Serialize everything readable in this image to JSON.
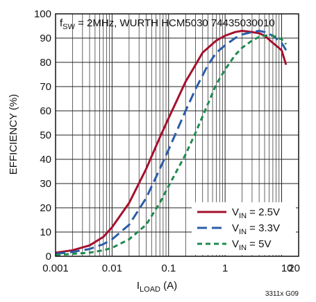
{
  "chart_data": {
    "type": "line",
    "title": "",
    "annotation": {
      "prefix": "f",
      "sub": "SW",
      "suffix": " = 2MHz, WURTH HCM5030 74435030010"
    },
    "xlabel": {
      "main": "I",
      "sub": "LOAD",
      "suffix": " (A)"
    },
    "ylabel": "EFFICIENCY (%)",
    "x_scale": "log",
    "xlim": [
      0.001,
      20
    ],
    "ylim": [
      0,
      100
    ],
    "grid": true,
    "x_ticks": [
      {
        "value": 0.001,
        "label": "0.001"
      },
      {
        "value": 0.01,
        "label": "0.01"
      },
      {
        "value": 0.1,
        "label": "0.1"
      },
      {
        "value": 1,
        "label": "1"
      },
      {
        "value": 10,
        "label": "10"
      },
      {
        "value": 20,
        "label": "20"
      }
    ],
    "y_ticks": [
      0,
      10,
      20,
      30,
      40,
      50,
      60,
      70,
      80,
      90,
      100
    ],
    "legend_position": "bottom-right",
    "series": [
      {
        "name": "V_IN = 2.5V",
        "label_main": "V",
        "label_sub": "IN",
        "label_suffix": " = 2.5V",
        "color": "#a50f2d",
        "dash": "solid",
        "x": [
          0.001,
          0.002,
          0.004,
          0.007,
          0.01,
          0.02,
          0.04,
          0.07,
          0.1,
          0.2,
          0.3,
          0.4,
          0.5,
          0.7,
          1,
          1.5,
          2,
          3,
          4,
          5,
          7,
          10,
          12
        ],
        "y": [
          1.5,
          2.5,
          4.5,
          8,
          12,
          22,
          36,
          49,
          57,
          72,
          79,
          84,
          86,
          89,
          91,
          92.5,
          93,
          92.5,
          92,
          91,
          88,
          85,
          79
        ]
      },
      {
        "name": "V_IN = 3.3V",
        "label_main": "V",
        "label_sub": "IN",
        "label_suffix": " = 3.3V",
        "color": "#2a5ca8",
        "dash": "long",
        "x": [
          0.001,
          0.002,
          0.004,
          0.007,
          0.01,
          0.02,
          0.04,
          0.07,
          0.1,
          0.2,
          0.3,
          0.5,
          0.7,
          1,
          1.5,
          2,
          3,
          4,
          5,
          7,
          10,
          12
        ],
        "y": [
          1,
          1.8,
          3,
          5,
          7,
          13,
          24,
          36,
          44,
          60,
          69,
          79,
          84,
          87,
          90,
          91.5,
          92.5,
          93,
          92.5,
          91,
          88,
          85
        ]
      },
      {
        "name": "V_IN = 5V",
        "label_main": "V",
        "label_sub": "IN",
        "label_suffix": " = 5V",
        "color": "#1f8a4c",
        "dash": "short",
        "x": [
          0.001,
          0.002,
          0.004,
          0.007,
          0.01,
          0.02,
          0.04,
          0.07,
          0.1,
          0.2,
          0.3,
          0.5,
          0.7,
          1,
          1.5,
          2,
          3,
          4,
          5,
          7,
          10,
          12
        ],
        "y": [
          0.5,
          1,
          1.5,
          2.5,
          3.5,
          7,
          13,
          22,
          29,
          42,
          51,
          63,
          71,
          77,
          83,
          86,
          89,
          90.5,
          91,
          91,
          89.5,
          87.5
        ]
      }
    ],
    "figure_code": "3311x G09"
  }
}
